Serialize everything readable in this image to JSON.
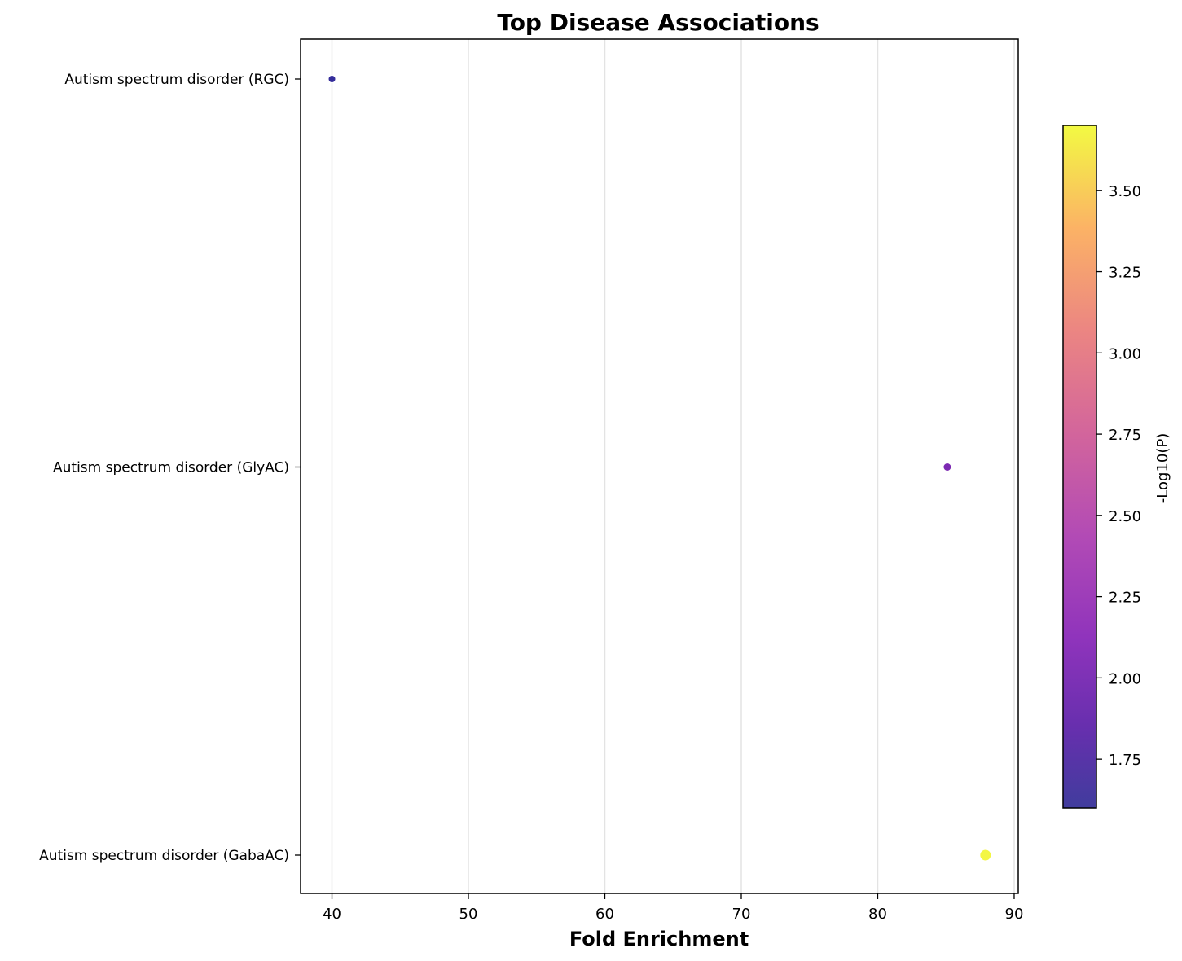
{
  "chart_data": {
    "type": "scatter",
    "title": "Top Disease Associations",
    "xlabel": "Fold Enrichment",
    "ylabel": "",
    "xlim": [
      37.7,
      90.3
    ],
    "xticks": [
      40,
      50,
      60,
      70,
      80,
      90
    ],
    "categories": [
      "Autism spectrum disorder (RGC)",
      "Autism spectrum disorder (GlyAC)",
      "Autism spectrum disorder (GabaAC)"
    ],
    "points": [
      {
        "category": "Autism spectrum disorder (RGC)",
        "fold_enrichment": 40.0,
        "neg_log10_p": 1.62
      },
      {
        "category": "Autism spectrum disorder (GlyAC)",
        "fold_enrichment": 85.1,
        "neg_log10_p": 2.0
      },
      {
        "category": "Autism spectrum disorder (GabaAC)",
        "fold_enrichment": 87.9,
        "neg_log10_p": 3.68
      }
    ],
    "grid": "x",
    "colorbar": {
      "label": "-Log10(P)",
      "colormap": "plasma",
      "range": [
        1.6,
        3.7
      ],
      "ticks": [
        "1.75",
        "2.00",
        "2.25",
        "2.50",
        "2.75",
        "3.00",
        "3.25",
        "3.50"
      ]
    }
  }
}
